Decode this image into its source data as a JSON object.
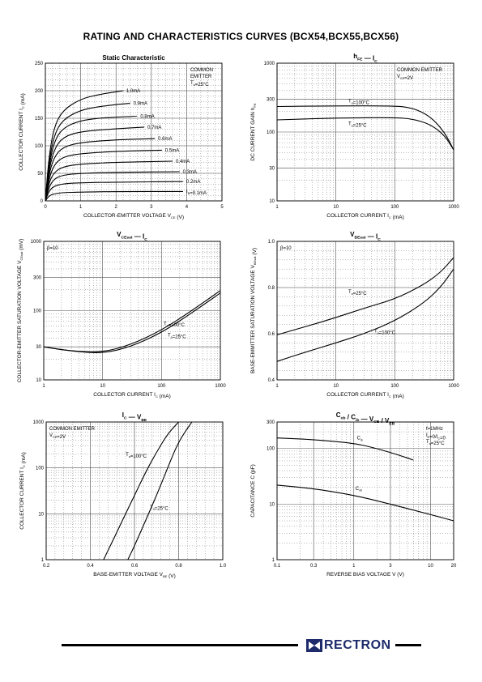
{
  "page": {
    "title": "RATING AND CHARACTERISTICS CURVES (BCX54,BCX55,BCX56)",
    "brand": "RECTRON"
  },
  "chart_data": [
    {
      "id": "c1",
      "type": "line",
      "title": "Static Characteristic",
      "xlabel": "COLLECTOR-EMITTER VOLTAGE   V",
      "xlabel_sub": "CE",
      "xlabel_unit": "(V)",
      "ylabel": "COLLECTOR CURRENT   I",
      "ylabel_sub": "C",
      "ylabel_unit": "(mA)",
      "xscale": "linear",
      "yscale": "linear",
      "xlim": [
        0,
        5
      ],
      "ylim": [
        0,
        250
      ],
      "xticks": [
        0,
        1,
        2,
        3,
        4,
        5
      ],
      "xticklabels": [
        "0",
        "1",
        "2",
        "3",
        "4",
        "5"
      ],
      "yticks": [
        0,
        50,
        100,
        150,
        200,
        250
      ],
      "yticklabels": [
        "0",
        "50",
        "100",
        "150",
        "200",
        "250"
      ],
      "grid": true,
      "annotations": [
        {
          "lines": [
            "COMMON",
            "EMITTER",
            "T=25°C"
          ],
          "pos": "top-right"
        }
      ],
      "series": [
        {
          "name": "1.0mA",
          "x": [
            0,
            0.1,
            0.25,
            0.5,
            1.0,
            1.5,
            2.0,
            2.2
          ],
          "y": [
            0,
            80,
            135,
            165,
            185,
            193,
            198,
            200
          ]
        },
        {
          "name": "0.9mA",
          "x": [
            0,
            0.1,
            0.25,
            0.5,
            1.0,
            1.5,
            2.0,
            2.4
          ],
          "y": [
            0,
            70,
            120,
            148,
            165,
            171,
            175,
            177
          ]
        },
        {
          "name": "0.8mA",
          "x": [
            0,
            0.1,
            0.25,
            0.5,
            1.0,
            1.5,
            2.0,
            2.6
          ],
          "y": [
            0,
            62,
            108,
            133,
            146,
            150,
            152,
            154
          ]
        },
        {
          "name": "0.7mA",
          "x": [
            0,
            0.1,
            0.25,
            0.5,
            1.0,
            2.0,
            2.8
          ],
          "y": [
            0,
            55,
            94,
            116,
            126,
            131,
            134
          ]
        },
        {
          "name": "0.6mA",
          "x": [
            0,
            0.1,
            0.25,
            0.5,
            1.0,
            2.0,
            3.1
          ],
          "y": [
            0,
            48,
            80,
            98,
            106,
            111,
            113
          ]
        },
        {
          "name": "0.5mA",
          "x": [
            0,
            0.1,
            0.25,
            0.5,
            1.0,
            2.0,
            3.3
          ],
          "y": [
            0,
            40,
            66,
            80,
            86,
            90,
            92
          ]
        },
        {
          "name": "0.4mA",
          "x": [
            0,
            0.1,
            0.25,
            0.5,
            1.0,
            2.0,
            3.6
          ],
          "y": [
            0,
            33,
            52,
            62,
            67,
            70,
            72
          ]
        },
        {
          "name": "0.3mA",
          "x": [
            0,
            0.1,
            0.25,
            0.5,
            1.0,
            2.0,
            3.8
          ],
          "y": [
            0,
            25,
            40,
            47,
            50,
            52,
            53
          ]
        },
        {
          "name": "0.2mA",
          "x": [
            0,
            0.1,
            0.25,
            0.5,
            1.0,
            2.0,
            3.9
          ],
          "y": [
            0,
            18,
            27,
            31,
            33,
            34,
            35
          ]
        },
        {
          "name": "I=0.1mA",
          "x": [
            0,
            0.1,
            0.25,
            0.5,
            1.0,
            2.0,
            3.9
          ],
          "y": [
            0,
            9,
            13,
            15,
            16,
            17,
            17
          ]
        }
      ]
    },
    {
      "id": "c2",
      "type": "line",
      "title": "h",
      "title_sub": "FE",
      "title_mid": "—",
      "title2": "I",
      "title2_sub": "C",
      "xlabel": "COLLECTOR CURRENT   I",
      "xlabel_sub": "C",
      "xlabel_unit": "(mA)",
      "ylabel": "DC CURRENT GAIN   h",
      "ylabel_sub": "FE",
      "ylabel_unit": "",
      "xscale": "log",
      "yscale": "log",
      "xlim": [
        1,
        1000
      ],
      "ylim": [
        10,
        1000
      ],
      "xticks": [
        1,
        10,
        100,
        1000
      ],
      "xticklabels": [
        "1",
        "10",
        "100",
        "1000"
      ],
      "yticks": [
        10,
        30,
        100,
        300,
        1000
      ],
      "yticklabels": [
        "10",
        "30",
        "100",
        "300",
        "1000"
      ],
      "grid": true,
      "annotations": [
        {
          "lines": [
            "COMMON EMITTER",
            "V=2V"
          ],
          "pos": "top-right"
        }
      ],
      "series": [
        {
          "name": "T=100°C",
          "x": [
            1,
            10,
            100,
            200,
            400,
            700,
            1000
          ],
          "y": [
            235,
            240,
            240,
            225,
            170,
            100,
            55
          ]
        },
        {
          "name": "T=25°C",
          "x": [
            1,
            10,
            100,
            200,
            400,
            700,
            1000
          ],
          "y": [
            150,
            160,
            162,
            155,
            130,
            90,
            55
          ]
        }
      ]
    },
    {
      "id": "c3",
      "type": "line",
      "title": "V",
      "title_sub": "CEsat",
      "title_mid": "—",
      "title2": "I",
      "title2_sub": "C",
      "xlabel": "COLLECTOR CURRENT   I",
      "xlabel_sub": "C",
      "xlabel_unit": "(mA)",
      "ylabel": "COLLECTOR-EMITTER SATURATION VOLTAGE   V",
      "ylabel_sub": "CEsat",
      "ylabel_unit": "(mV)",
      "xscale": "log",
      "yscale": "log",
      "xlim": [
        1,
        1000
      ],
      "ylim": [
        10,
        1000
      ],
      "xticks": [
        1,
        10,
        100,
        1000
      ],
      "xticklabels": [
        "1",
        "10",
        "100",
        "1000"
      ],
      "yticks": [
        10,
        30,
        100,
        300,
        1000
      ],
      "yticklabels": [
        "10",
        "30",
        "100",
        "300",
        "1000"
      ],
      "grid": true,
      "annotations": [
        {
          "lines": [
            "β=10"
          ],
          "pos": "top-left"
        }
      ],
      "series": [
        {
          "name": "T=100°C",
          "x": [
            1,
            3,
            10,
            30,
            100,
            300,
            1000
          ],
          "y": [
            30,
            26,
            25,
            32,
            52,
            95,
            195
          ]
        },
        {
          "name": "T=25°C",
          "x": [
            1,
            3,
            10,
            30,
            100,
            300,
            1000
          ],
          "y": [
            30,
            26,
            24,
            30,
            48,
            88,
            180
          ]
        }
      ]
    },
    {
      "id": "c4",
      "type": "line",
      "title": "V",
      "title_sub": "BEsat",
      "title_mid": "—",
      "title2": "I",
      "title2_sub": "C",
      "xlabel": "COLLECTOR CURRENT   I",
      "xlabel_sub": "C",
      "xlabel_unit": "(mA)",
      "ylabel": "BASE-EMMITTER SATURATION VOLTAGE   V",
      "ylabel_sub": "BEsat",
      "ylabel_unit": "(V)",
      "xscale": "log",
      "yscale": "linear",
      "xlim": [
        1,
        1000
      ],
      "ylim": [
        0.4,
        1.0
      ],
      "xticks": [
        1,
        10,
        100,
        1000
      ],
      "xticklabels": [
        "1",
        "10",
        "100",
        "1000"
      ],
      "yticks": [
        0.4,
        0.6,
        0.8,
        1.0
      ],
      "yticklabels": [
        "0.4",
        "0.6",
        "0.8",
        "1.0"
      ],
      "grid": true,
      "annotations": [
        {
          "lines": [
            "β=10"
          ],
          "pos": "top-left"
        }
      ],
      "series": [
        {
          "name": "T=25°C",
          "x": [
            1,
            3,
            10,
            30,
            100,
            300,
            600,
            1000
          ],
          "y": [
            0.595,
            0.63,
            0.67,
            0.71,
            0.75,
            0.81,
            0.865,
            0.93
          ]
        },
        {
          "name": "T=100°C",
          "x": [
            1,
            3,
            10,
            30,
            100,
            300,
            600,
            1000
          ],
          "y": [
            0.48,
            0.52,
            0.56,
            0.6,
            0.655,
            0.73,
            0.8,
            0.88
          ]
        }
      ]
    },
    {
      "id": "c5",
      "type": "line",
      "title": "I",
      "title_sub": "C",
      "title_mid": "—",
      "title2": "V",
      "title2_sub": "BE",
      "xlabel": "BASE-EMITTER VOLTAGE   V",
      "xlabel_sub": "BE",
      "xlabel_unit": "(V)",
      "ylabel": "COLLECTOR CURRENT   I",
      "ylabel_sub": "C",
      "ylabel_unit": "(mA)",
      "xscale": "linear",
      "yscale": "log",
      "xlim": [
        0.2,
        1.0
      ],
      "ylim": [
        1,
        1000
      ],
      "xticks": [
        0.2,
        0.4,
        0.6,
        0.8,
        1.0
      ],
      "xticklabels": [
        "0.2",
        "0.4",
        "0.6",
        "0.8",
        "1.0"
      ],
      "yticks": [
        1,
        10,
        100,
        1000
      ],
      "yticklabels": [
        "1",
        "10",
        "100",
        "1000"
      ],
      "grid": true,
      "annotations": [
        {
          "lines": [
            "COMMON EMITTER",
            "V=2V"
          ],
          "pos": "top-left"
        }
      ],
      "series": [
        {
          "name": "T=100°C",
          "x": [
            0.46,
            0.5,
            0.55,
            0.6,
            0.65,
            0.7,
            0.75,
            0.8
          ],
          "y": [
            1,
            2.5,
            8,
            25,
            80,
            220,
            550,
            1000
          ]
        },
        {
          "name": "T=25°C",
          "x": [
            0.57,
            0.6,
            0.65,
            0.7,
            0.75,
            0.8,
            0.86
          ],
          "y": [
            1,
            2,
            7,
            25,
            100,
            380,
            1000
          ]
        }
      ]
    },
    {
      "id": "c6",
      "type": "line",
      "title": "C",
      "title_sub": "ob",
      "title_mid": "/",
      "title2": "C",
      "title2_sub": "ib",
      "title3": "V",
      "title3_sub": "CB",
      "title4": "V",
      "title4_sub": "EB",
      "xlabel": "REVERSE BIAS VOLTAGE   V",
      "xlabel_sub": "",
      "xlabel_unit": "(V)",
      "ylabel": "CAPACITANCE   C",
      "ylabel_sub": "",
      "ylabel_unit": "(pF)",
      "xscale": "log",
      "yscale": "log",
      "xlim": [
        0.1,
        20
      ],
      "ylim": [
        1,
        300
      ],
      "xticks": [
        0.1,
        0.3,
        1,
        3,
        10,
        20
      ],
      "xticklabels": [
        "0.1",
        "0.3",
        "1",
        "3",
        "10",
        "20"
      ],
      "yticks": [
        1,
        10,
        100,
        300
      ],
      "yticklabels": [
        "1",
        "10",
        "100",
        "300"
      ],
      "grid": true,
      "annotations": [
        {
          "lines": [
            "f=1MHz",
            "I=0/I=0",
            "T=25°C"
          ],
          "pos": "top-right"
        }
      ],
      "series": [
        {
          "name": "C",
          "x": [
            0.1,
            0.3,
            1,
            2,
            4,
            6
          ],
          "y": [
            155,
            145,
            125,
            100,
            75,
            62
          ]
        },
        {
          "name": "C",
          "x": [
            0.1,
            0.3,
            1,
            3,
            10,
            20
          ],
          "y": [
            22,
            19,
            14.5,
            10,
            6.5,
            5
          ]
        }
      ]
    }
  ]
}
